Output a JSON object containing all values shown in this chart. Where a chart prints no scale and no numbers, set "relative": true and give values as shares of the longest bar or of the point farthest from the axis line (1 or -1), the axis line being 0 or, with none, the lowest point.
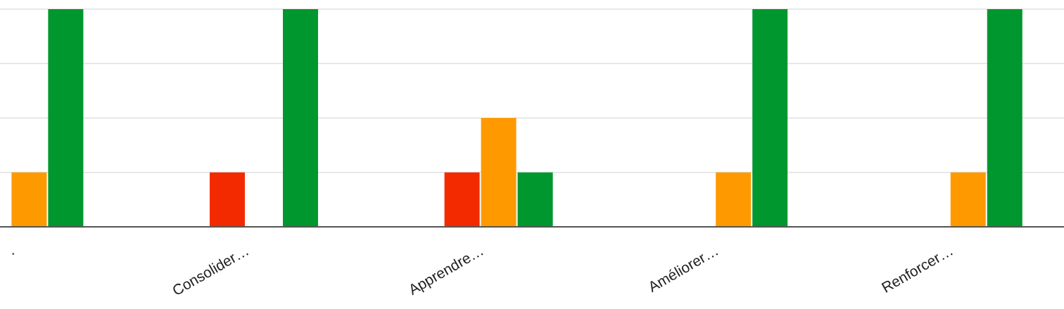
{
  "chart_data": {
    "type": "bar",
    "relative": true,
    "grid": "y",
    "legend": false,
    "categories": [
      ".",
      "Consolider…",
      "Apprendre…",
      "Améliorer…",
      "Renforcer…"
    ],
    "series": [
      {
        "color": "#3366cc",
        "values": [
          null,
          0,
          0,
          0,
          0
        ]
      },
      {
        "color": "#f32a00",
        "values": [
          null,
          0.25,
          0.25,
          0,
          0
        ]
      },
      {
        "color": "#ff9900",
        "values": [
          0.25,
          0,
          0.5,
          0.25,
          0.25
        ]
      },
      {
        "color": "#00972f",
        "values": [
          1,
          1,
          0.25,
          1,
          1
        ]
      }
    ]
  }
}
